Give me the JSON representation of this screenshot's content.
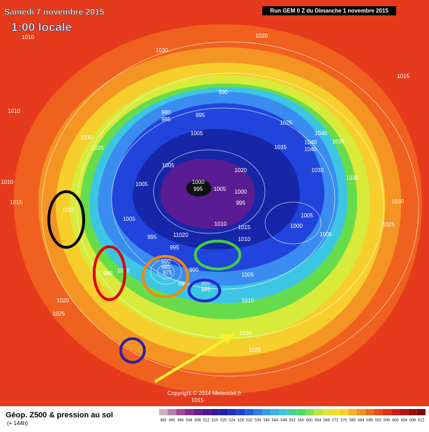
{
  "header": {
    "date": "Samedi 7 novembre 2015",
    "time": "1:00 locale",
    "run": "Run GEM 0 Z du Dimanche 1 novembre 2015"
  },
  "isobar_labels": [
    "1010",
    "1030",
    "1020",
    "1015",
    "1010",
    "1030",
    "1025",
    "990",
    "980",
    "985",
    "995",
    "1005",
    "1025",
    "1040",
    "1040",
    "1035",
    "1035",
    "1040",
    "1020",
    "1030",
    "1035",
    "1010",
    "1015",
    "1010",
    "1005",
    "1005",
    "1000",
    "995",
    "1005",
    "1000",
    "995",
    "1005",
    "1005",
    "1000",
    "1030",
    "1025",
    "1010",
    "1015",
    "995",
    "11020",
    "1010",
    "1005",
    "995",
    "990",
    "985",
    "975",
    "995",
    "1010",
    "995",
    "990",
    "985",
    "995",
    "1005",
    "1010",
    "1020",
    "1025",
    "1030",
    "1025",
    "1015"
  ],
  "copyright": "Copyright © 2014 Meteociel.fr",
  "legend": {
    "title": "Géop. Z500 & pression au sol",
    "subtitle": "(+ 144h)",
    "scale": [
      482,
      490,
      496,
      504,
      508,
      512,
      516,
      520,
      524,
      528,
      532,
      536,
      540,
      544,
      548,
      552,
      556,
      560,
      564,
      568,
      572,
      576,
      580,
      584,
      588,
      592,
      596,
      600,
      604,
      608,
      612
    ]
  }
}
